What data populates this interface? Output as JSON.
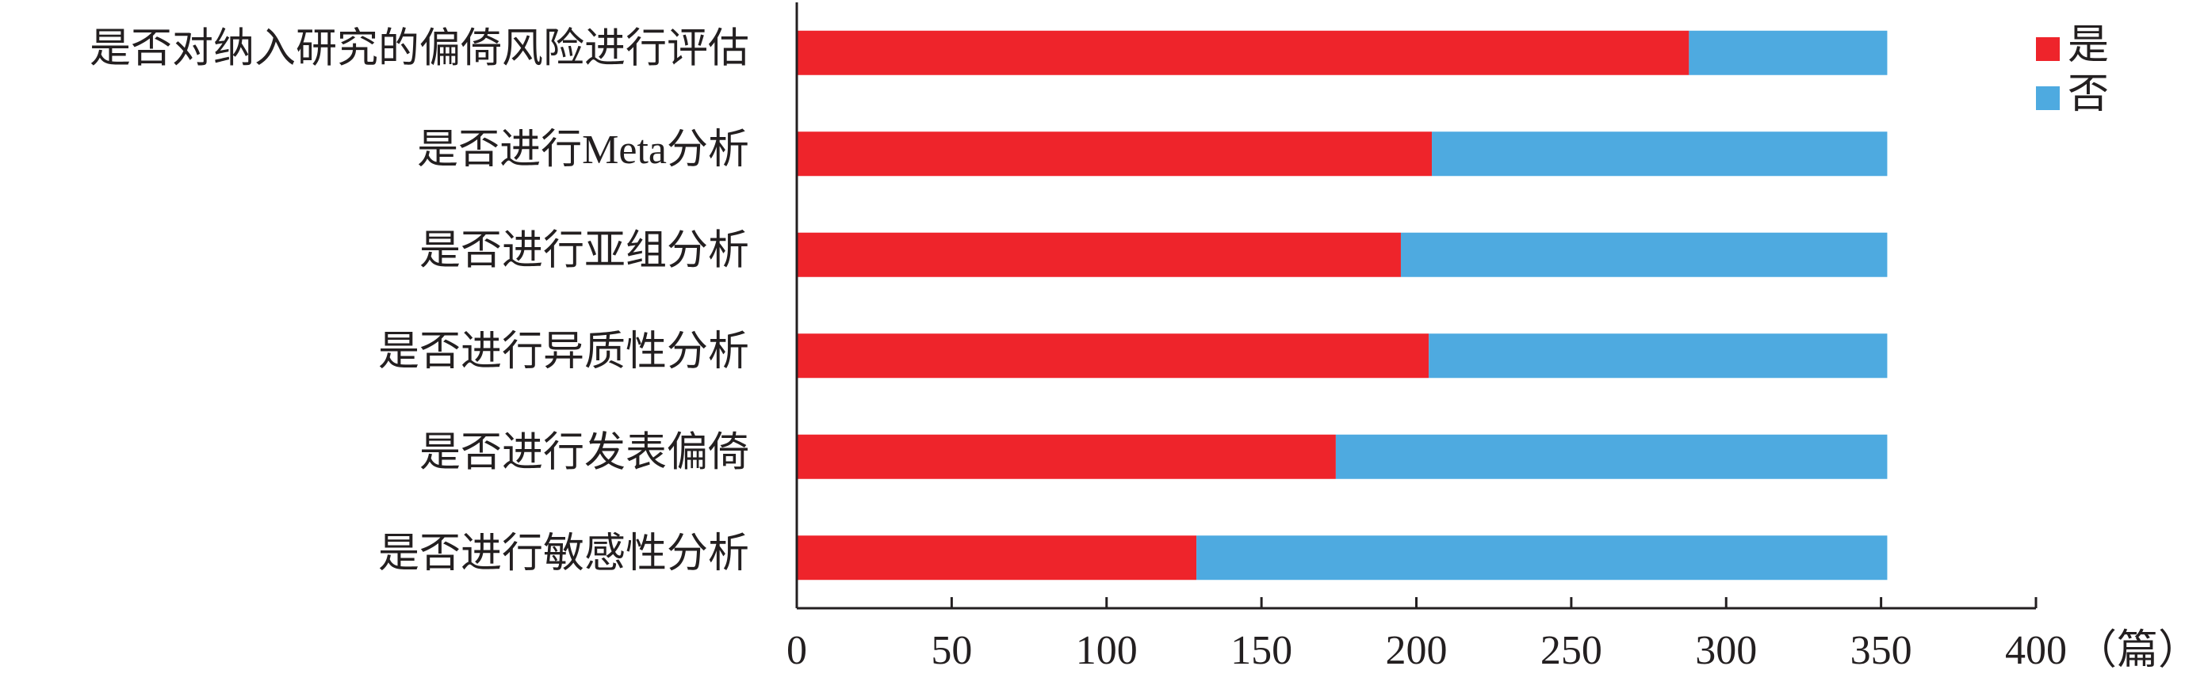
{
  "chart_data": {
    "type": "stacked_bar_horizontal",
    "categories": [
      "是否对纳入研究的偏倚风险进行评估",
      "是否进行Meta分析",
      "是否进行亚组分析",
      "是否进行异质性分析",
      "是否进行发表偏倚",
      "是否进行敏感性分析"
    ],
    "series": [
      {
        "name": "是",
        "color": "#ee242b",
        "values": [
          288,
          205,
          195,
          204,
          174,
          129
        ]
      },
      {
        "name": "否",
        "color": "#4eaae0",
        "values": [
          64,
          147,
          157,
          148,
          178,
          223
        ]
      }
    ],
    "xlim": [
      0,
      400
    ],
    "xticks": [
      0,
      50,
      100,
      150,
      200,
      250,
      300,
      350,
      400
    ],
    "x_label": "（篇）",
    "legend": "top-right"
  }
}
